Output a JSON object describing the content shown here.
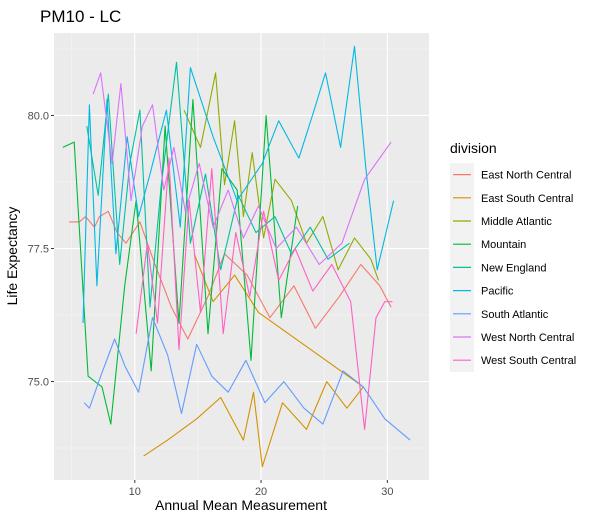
{
  "chart_data": {
    "type": "line",
    "title": "PM10 - LC",
    "xlabel": "Annual Mean Measurement",
    "ylabel": "Life Expectancy",
    "xlim": [
      3.6,
      33.3
    ],
    "ylim": [
      73.15,
      81.55
    ],
    "x_ticks": [
      10,
      20,
      30
    ],
    "y_ticks": [
      75.0,
      77.5,
      80.0
    ],
    "x_tick_labels": [
      "10",
      "20",
      "30"
    ],
    "y_tick_labels": [
      "75.0",
      "77.5",
      "80.0"
    ],
    "grid": true,
    "background": "#ebebeb",
    "legend": {
      "title": "division",
      "placement": "right"
    },
    "series": [
      {
        "name": "East North Central",
        "color": "#F8766D",
        "x": [
          4.8,
          5.6,
          6.1,
          6.8,
          7.2,
          7.9,
          8.6,
          9.3,
          10.4,
          11.6,
          12.9,
          14.2,
          15.8,
          17.1,
          18.9,
          20.7,
          22.6,
          24.3,
          26.2,
          27.9,
          29.4,
          30.3
        ],
        "y": [
          78.0,
          78.0,
          78.1,
          77.9,
          78.1,
          78.2,
          77.8,
          77.6,
          78.0,
          77.2,
          76.4,
          75.8,
          76.6,
          77.4,
          77.0,
          76.2,
          76.8,
          76.0,
          76.6,
          77.2,
          76.8,
          76.4
        ]
      },
      {
        "name": "East South Central",
        "color": "#D39200",
        "x": [
          10.7,
          12.6,
          14.9,
          16.8,
          18.6,
          19.4,
          20.1,
          21.7,
          23.6,
          25.2,
          26.8,
          28.1,
          19.8,
          17.9,
          16.2,
          14.7
        ],
        "y": [
          73.6,
          73.9,
          74.3,
          74.7,
          73.9,
          74.8,
          73.4,
          74.6,
          74.1,
          75.0,
          74.5,
          74.9,
          76.3,
          77.0,
          76.5,
          77.4
        ]
      },
      {
        "name": "Middle Atlantic",
        "color": "#93AA00",
        "x": [
          13.9,
          15.2,
          16.4,
          17.1,
          17.9,
          18.6,
          19.3,
          20.2,
          21.1,
          22.4,
          23.6,
          24.9,
          26.1,
          27.4,
          28.7,
          29.3
        ],
        "y": [
          80.1,
          79.4,
          80.8,
          78.7,
          79.9,
          78.1,
          79.3,
          77.7,
          78.8,
          78.4,
          77.6,
          78.1,
          77.1,
          77.7,
          77.3,
          76.9
        ]
      },
      {
        "name": "Mountain",
        "color": "#00BA38",
        "x": [
          4.3,
          5.2,
          6.3,
          7.4,
          8.1,
          9.2,
          10.1,
          11.3,
          12.4,
          13.5,
          14.6,
          15.8,
          16.9,
          18.1,
          19.2,
          20.4,
          21.6,
          22.9
        ],
        "y": [
          79.4,
          79.5,
          75.1,
          74.9,
          74.2,
          76.8,
          78.4,
          75.2,
          79.8,
          76.1,
          80.3,
          75.9,
          79.0,
          78.6,
          75.4,
          80.0,
          76.2,
          78.3
        ]
      },
      {
        "name": "New England",
        "color": "#00C19F",
        "x": [
          6.2,
          7.1,
          7.9,
          8.8,
          9.6,
          10.4,
          11.2,
          12.1,
          13.3,
          14.4,
          15.6,
          16.8,
          18.2,
          19.6,
          21.1,
          22.4,
          23.9,
          25.3,
          27.0
        ],
        "y": [
          79.8,
          78.5,
          80.4,
          77.2,
          79.1,
          80.1,
          76.4,
          78.7,
          81.0,
          77.6,
          78.9,
          77.1,
          78.5,
          77.8,
          78.1,
          77.4,
          77.9,
          77.3,
          77.6
        ]
      },
      {
        "name": "Pacific",
        "color": "#00B9E3",
        "x": [
          5.9,
          6.4,
          7.0,
          7.8,
          8.5,
          9.4,
          10.3,
          11.2,
          12.5,
          13.6,
          14.4,
          16.2,
          18.1,
          20.1,
          21.4,
          23.0,
          24.2,
          25.1,
          26.3,
          27.4,
          28.3,
          29.2,
          30.5
        ],
        "y": [
          76.1,
          80.2,
          76.8,
          80.3,
          77.4,
          79.6,
          78.1,
          78.9,
          80.1,
          77.9,
          80.9,
          79.6,
          78.4,
          79.1,
          79.9,
          79.2,
          80.1,
          80.8,
          79.4,
          81.3,
          79.0,
          77.1,
          78.4
        ]
      },
      {
        "name": "South Atlantic",
        "color": "#619CFF",
        "x": [
          6.0,
          6.4,
          7.3,
          8.4,
          9.2,
          10.3,
          11.4,
          12.6,
          13.7,
          14.9,
          16.1,
          17.4,
          18.8,
          20.3,
          21.8,
          23.4,
          24.9,
          26.5,
          28.1,
          29.8,
          31.8
        ],
        "y": [
          74.6,
          74.5,
          75.1,
          75.8,
          75.3,
          74.8,
          76.2,
          75.5,
          74.4,
          75.7,
          75.1,
          74.8,
          75.4,
          74.6,
          75.0,
          74.5,
          74.2,
          75.2,
          74.9,
          74.3,
          73.9
        ]
      },
      {
        "name": "West North Central",
        "color": "#DB72FB",
        "x": [
          6.7,
          7.3,
          8.2,
          8.9,
          9.7,
          10.6,
          11.4,
          12.3,
          13.1,
          14.0,
          15.1,
          16.2,
          17.4,
          18.6,
          19.8,
          21.2,
          22.8,
          24.6,
          26.4,
          28.2,
          30.3
        ],
        "y": [
          80.4,
          80.8,
          79.1,
          80.6,
          78.4,
          79.8,
          80.2,
          78.6,
          79.4,
          78.2,
          79.1,
          77.9,
          78.6,
          77.7,
          78.3,
          77.5,
          77.9,
          77.2,
          77.6,
          78.8,
          79.5
        ]
      },
      {
        "name": "West South Central",
        "color": "#FF61C3",
        "x": [
          10.1,
          11.0,
          11.8,
          12.7,
          13.5,
          14.3,
          15.2,
          16.1,
          17.0,
          18.0,
          19.1,
          20.2,
          21.4,
          22.7,
          24.1,
          25.6,
          27.1,
          28.2,
          29.1,
          29.8,
          30.4
        ],
        "y": [
          75.9,
          77.6,
          76.1,
          79.2,
          75.6,
          78.4,
          76.3,
          79.0,
          75.9,
          77.8,
          76.6,
          78.2,
          76.9,
          77.5,
          76.7,
          77.2,
          76.5,
          74.1,
          76.2,
          76.5,
          76.5
        ]
      }
    ]
  }
}
